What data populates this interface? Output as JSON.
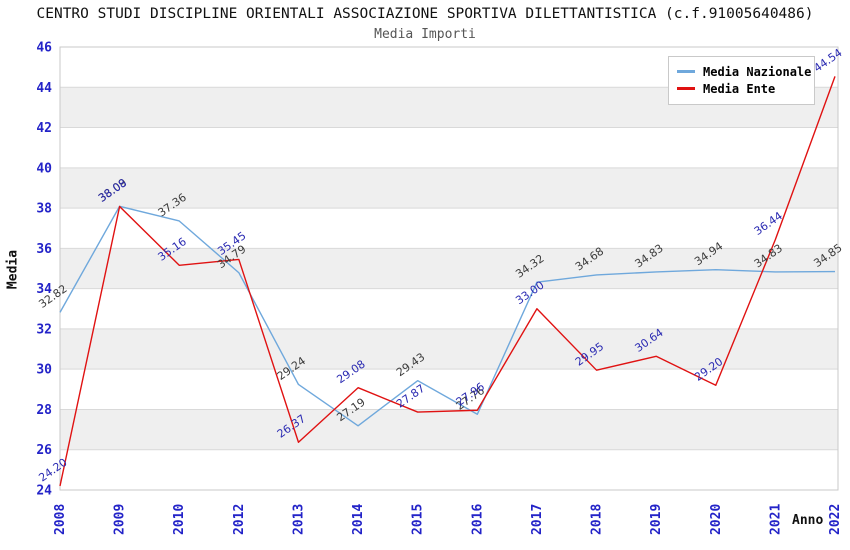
{
  "header": {
    "title": "CENTRO STUDI DISCIPLINE ORIENTALI ASSOCIAZIONE SPORTIVA DILETTANTISTICA (c.f.91005640486)",
    "subtitle": "Media Importi"
  },
  "chart_data": {
    "type": "line",
    "title": "Media Importi",
    "xlabel": "Anno",
    "ylabel": "Media",
    "categories": [
      "2008",
      "2009",
      "2010",
      "2012",
      "2013",
      "2014",
      "2015",
      "2016",
      "2017",
      "2018",
      "2019",
      "2020",
      "2021",
      "2022"
    ],
    "series": [
      {
        "name": "Media Nazionale",
        "color": "#6FA8DC",
        "label_color": "#3b3b3b",
        "values": [
          32.82,
          38.09,
          37.36,
          34.79,
          29.24,
          27.19,
          29.43,
          27.76,
          34.32,
          34.68,
          34.83,
          34.94,
          34.83,
          34.85
        ]
      },
      {
        "name": "Media Ente",
        "color": "#E01212",
        "label_color": "#2A2AB2",
        "values": [
          24.2,
          38.08,
          35.16,
          35.45,
          26.37,
          29.08,
          27.87,
          27.96,
          33.0,
          29.95,
          30.64,
          29.2,
          36.44,
          44.54
        ]
      }
    ],
    "ylim": [
      24,
      46
    ],
    "ytick_step": 2,
    "grid": true,
    "legend_position": "top-right",
    "band_colors": [
      "#ffffff",
      "#efefef"
    ],
    "grid_color": "#d9d9d9",
    "border_color": "#c9c9c9",
    "axis_text_color": "#2323c8"
  }
}
